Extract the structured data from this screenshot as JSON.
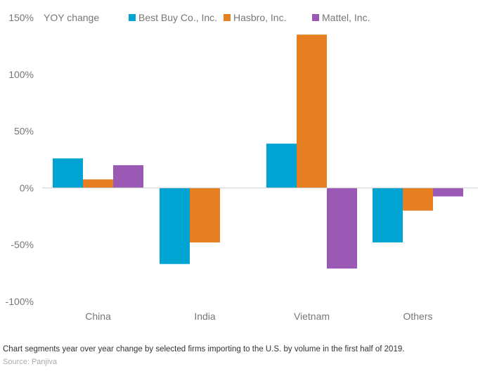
{
  "chart_data": {
    "type": "bar",
    "ylabel": "YOY change",
    "ylim": [
      -100,
      150
    ],
    "yticks": [
      150,
      100,
      50,
      0,
      -50,
      -100
    ],
    "ytick_labels": [
      "150%",
      "100%",
      "50%",
      "0%",
      "-50%",
      "-100%"
    ],
    "categories": [
      "China",
      "India",
      "Vietnam",
      "Others"
    ],
    "series": [
      {
        "name": "Best Buy Co., Inc.",
        "color": "#00a3d1",
        "values": [
          26,
          -67,
          39,
          -48
        ]
      },
      {
        "name": "Hasbro, Inc.",
        "color": "#e67e22",
        "values": [
          7.5,
          -48,
          135,
          -20
        ]
      },
      {
        "name": "Mattel, Inc.",
        "color": "#9b59b6",
        "values": [
          20,
          0,
          -71,
          -7.5
        ]
      }
    ],
    "grid": false,
    "legend": "top"
  },
  "caption": "Chart segments year over year change by selected firms importing to the U.S. by volume in the first half of 2019.",
  "source": "Source: Panjiva"
}
